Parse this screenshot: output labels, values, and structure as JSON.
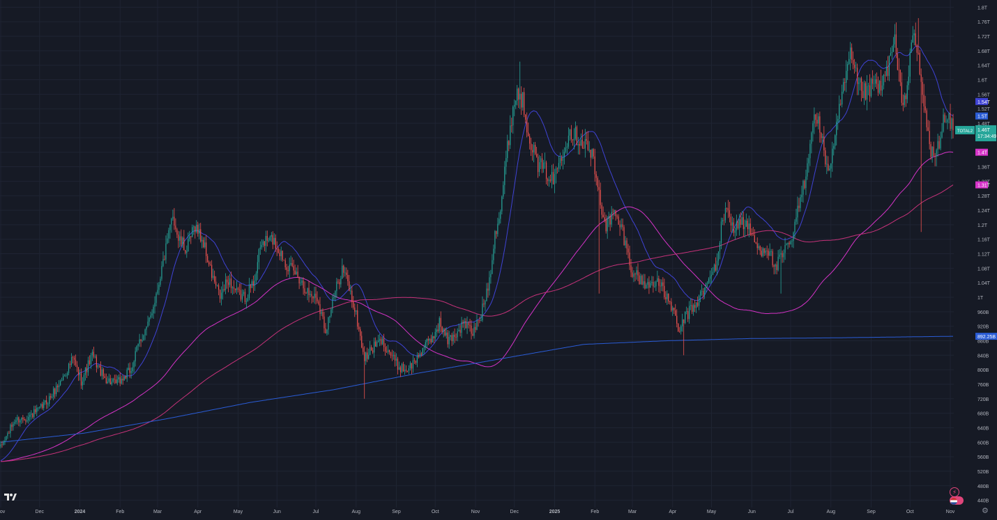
{
  "app": {
    "logo_text": "TV",
    "settings_icon": "gear-icon",
    "lightning_icon": "lightning-icon",
    "flag_icon": "us-flag-icon"
  },
  "colors": {
    "background": "#161a25",
    "grid": "#1f2433",
    "up": "#26a69a",
    "down": "#ef5350",
    "ma_short": "#3f43d6",
    "ma_mid": "#d633c8",
    "ma_long": "#c7327a",
    "ma_slow": "#2a5cd6",
    "axis_text": "#b2b5be"
  },
  "chart_data": {
    "type": "candlestick",
    "symbol_label": "TOTAL2",
    "y_scale": "linear",
    "ylim": [
      420,
      1820
    ],
    "y_unit": "billions USD",
    "y_ticks": [
      {
        "v": 440,
        "label": "440B"
      },
      {
        "v": 480,
        "label": "480B"
      },
      {
        "v": 520,
        "label": "520B"
      },
      {
        "v": 560,
        "label": "560B"
      },
      {
        "v": 600,
        "label": "600B"
      },
      {
        "v": 640,
        "label": "640B"
      },
      {
        "v": 680,
        "label": "680B"
      },
      {
        "v": 720,
        "label": "720B"
      },
      {
        "v": 760,
        "label": "760B"
      },
      {
        "v": 800,
        "label": "800B"
      },
      {
        "v": 840,
        "label": "840B"
      },
      {
        "v": 880,
        "label": "880B"
      },
      {
        "v": 920,
        "label": "920B"
      },
      {
        "v": 960,
        "label": "960B"
      },
      {
        "v": 1000,
        "label": "1T"
      },
      {
        "v": 1040,
        "label": "1.04T"
      },
      {
        "v": 1080,
        "label": "1.08T"
      },
      {
        "v": 1120,
        "label": "1.12T"
      },
      {
        "v": 1160,
        "label": "1.16T"
      },
      {
        "v": 1200,
        "label": "1.2T"
      },
      {
        "v": 1240,
        "label": "1.24T"
      },
      {
        "v": 1280,
        "label": "1.28T"
      },
      {
        "v": 1320,
        "label": "1.32T"
      },
      {
        "v": 1360,
        "label": "1.36T"
      },
      {
        "v": 1400,
        "label": "1.4T"
      },
      {
        "v": 1440,
        "label": "1.44T"
      },
      {
        "v": 1480,
        "label": "1.48T"
      },
      {
        "v": 1520,
        "label": "1.52T"
      },
      {
        "v": 1560,
        "label": "1.56T"
      },
      {
        "v": 1600,
        "label": "1.6T"
      },
      {
        "v": 1640,
        "label": "1.64T"
      },
      {
        "v": 1680,
        "label": "1.68T"
      },
      {
        "v": 1720,
        "label": "1.72T"
      },
      {
        "v": 1760,
        "label": "1.76T"
      },
      {
        "v": 1800,
        "label": "1.8T"
      }
    ],
    "x_ticks": [
      {
        "i": 0,
        "label": "Nov",
        "bold": false
      },
      {
        "i": 28,
        "label": "Dec",
        "bold": false
      },
      {
        "i": 57,
        "label": "2024",
        "bold": true
      },
      {
        "i": 86,
        "label": "Feb",
        "bold": false
      },
      {
        "i": 113,
        "label": "Mar",
        "bold": false
      },
      {
        "i": 142,
        "label": "Apr",
        "bold": false
      },
      {
        "i": 171,
        "label": "May",
        "bold": false
      },
      {
        "i": 199,
        "label": "Jun",
        "bold": false
      },
      {
        "i": 227,
        "label": "Jul",
        "bold": false
      },
      {
        "i": 256,
        "label": "Aug",
        "bold": false
      },
      {
        "i": 285,
        "label": "Sep",
        "bold": false
      },
      {
        "i": 313,
        "label": "Oct",
        "bold": false
      },
      {
        "i": 342,
        "label": "Nov",
        "bold": false
      },
      {
        "i": 370,
        "label": "Dec",
        "bold": false
      },
      {
        "i": 399,
        "label": "2025",
        "bold": true
      },
      {
        "i": 428,
        "label": "Feb",
        "bold": false
      },
      {
        "i": 455,
        "label": "Mar",
        "bold": false
      },
      {
        "i": 484,
        "label": "Apr",
        "bold": false
      },
      {
        "i": 512,
        "label": "May",
        "bold": false
      },
      {
        "i": 541,
        "label": "Jun",
        "bold": false
      },
      {
        "i": 569,
        "label": "Jul",
        "bold": false
      },
      {
        "i": 598,
        "label": "Aug",
        "bold": false
      },
      {
        "i": 627,
        "label": "Sep",
        "bold": false
      },
      {
        "i": 655,
        "label": "Oct",
        "bold": false
      },
      {
        "i": 684,
        "label": "Nov",
        "bold": false
      }
    ],
    "price_anchors": [
      [
        0,
        585
      ],
      [
        10,
        660
      ],
      [
        20,
        670
      ],
      [
        28,
        690
      ],
      [
        36,
        725
      ],
      [
        45,
        780
      ],
      [
        52,
        830
      ],
      [
        58,
        770
      ],
      [
        66,
        840
      ],
      [
        74,
        780
      ],
      [
        82,
        760
      ],
      [
        88,
        775
      ],
      [
        94,
        800
      ],
      [
        100,
        880
      ],
      [
        106,
        920
      ],
      [
        112,
        1010
      ],
      [
        116,
        1080
      ],
      [
        120,
        1150
      ],
      [
        124,
        1230
      ],
      [
        128,
        1160
      ],
      [
        134,
        1130
      ],
      [
        140,
        1200
      ],
      [
        146,
        1150
      ],
      [
        152,
        1060
      ],
      [
        158,
        1000
      ],
      [
        164,
        1050
      ],
      [
        170,
        1010
      ],
      [
        176,
        1000
      ],
      [
        182,
        1040
      ],
      [
        188,
        1150
      ],
      [
        196,
        1160
      ],
      [
        202,
        1120
      ],
      [
        208,
        1080
      ],
      [
        214,
        1060
      ],
      [
        222,
        1010
      ],
      [
        228,
        1000
      ],
      [
        234,
        910
      ],
      [
        240,
        1000
      ],
      [
        246,
        1080
      ],
      [
        250,
        1040
      ],
      [
        256,
        950
      ],
      [
        262,
        830
      ],
      [
        268,
        860
      ],
      [
        274,
        880
      ],
      [
        280,
        850
      ],
      [
        286,
        810
      ],
      [
        292,
        800
      ],
      [
        298,
        820
      ],
      [
        304,
        860
      ],
      [
        310,
        880
      ],
      [
        316,
        930
      ],
      [
        322,
        880
      ],
      [
        328,
        900
      ],
      [
        334,
        930
      ],
      [
        340,
        900
      ],
      [
        346,
        950
      ],
      [
        352,
        1050
      ],
      [
        356,
        1180
      ],
      [
        360,
        1240
      ],
      [
        364,
        1380
      ],
      [
        368,
        1500
      ],
      [
        372,
        1570
      ],
      [
        376,
        1540
      ],
      [
        380,
        1460
      ],
      [
        386,
        1370
      ],
      [
        392,
        1350
      ],
      [
        398,
        1320
      ],
      [
        404,
        1400
      ],
      [
        410,
        1460
      ],
      [
        416,
        1440
      ],
      [
        422,
        1420
      ],
      [
        426,
        1390
      ],
      [
        432,
        1260
      ],
      [
        436,
        1200
      ],
      [
        442,
        1230
      ],
      [
        448,
        1180
      ],
      [
        454,
        1080
      ],
      [
        460,
        1050
      ],
      [
        466,
        1030
      ],
      [
        472,
        1050
      ],
      [
        478,
        1010
      ],
      [
        484,
        970
      ],
      [
        488,
        900
      ],
      [
        492,
        940
      ],
      [
        496,
        960
      ],
      [
        502,
        990
      ],
      [
        508,
        1030
      ],
      [
        512,
        1060
      ],
      [
        516,
        1100
      ],
      [
        520,
        1220
      ],
      [
        524,
        1240
      ],
      [
        528,
        1190
      ],
      [
        534,
        1210
      ],
      [
        540,
        1180
      ],
      [
        546,
        1130
      ],
      [
        552,
        1140
      ],
      [
        558,
        1080
      ],
      [
        564,
        1120
      ],
      [
        570,
        1160
      ],
      [
        576,
        1270
      ],
      [
        580,
        1340
      ],
      [
        584,
        1470
      ],
      [
        588,
        1500
      ],
      [
        592,
        1420
      ],
      [
        596,
        1350
      ],
      [
        600,
        1410
      ],
      [
        606,
        1560
      ],
      [
        612,
        1660
      ],
      [
        618,
        1580
      ],
      [
        624,
        1560
      ],
      [
        630,
        1590
      ],
      [
        634,
        1570
      ],
      [
        640,
        1650
      ],
      [
        644,
        1700
      ],
      [
        648,
        1570
      ],
      [
        652,
        1540
      ],
      [
        656,
        1720
      ],
      [
        660,
        1680
      ],
      [
        664,
        1560
      ],
      [
        666,
        1500
      ],
      [
        670,
        1400
      ],
      [
        674,
        1390
      ],
      [
        678,
        1480
      ],
      [
        682,
        1490
      ],
      [
        686,
        1461
      ]
    ],
    "wick_spikes": [
      {
        "i": 262,
        "low": 720
      },
      {
        "i": 431,
        "low": 1010
      },
      {
        "i": 492,
        "low": 840
      },
      {
        "i": 562,
        "low": 1010
      },
      {
        "i": 663,
        "low": 1180
      },
      {
        "i": 374,
        "high": 1650
      },
      {
        "i": 661,
        "high": 1770
      }
    ],
    "moving_averages": [
      {
        "key": "ma_short",
        "period": 20,
        "last": 1500,
        "label": "1.5T"
      },
      {
        "key": "ma_mid",
        "period": 100,
        "last": 1400,
        "label": "1.4T"
      },
      {
        "key": "ma_long",
        "period": 200,
        "last": 1310,
        "label": "1.31T"
      },
      {
        "key": "ma_slow",
        "period": 730,
        "last": 892.25,
        "label": "892.25B"
      }
    ],
    "ma_slow_anchors": [
      [
        0,
        600
      ],
      [
        60,
        625
      ],
      [
        120,
        665
      ],
      [
        180,
        710
      ],
      [
        240,
        745
      ],
      [
        300,
        790
      ],
      [
        360,
        830
      ],
      [
        420,
        870
      ],
      [
        480,
        880
      ],
      [
        540,
        886
      ],
      [
        600,
        888
      ],
      [
        686,
        892.25
      ]
    ],
    "price_labels": [
      {
        "value": 1540,
        "label": "1.54T",
        "color": "#3f43d6"
      },
      {
        "value": 1500,
        "label": "1.5T",
        "color": "#2a5cd6"
      },
      {
        "value": 1461,
        "label": "1.46T",
        "extra": "17:34:49",
        "tag": "TOTAL2",
        "color": "#26a69a"
      },
      {
        "value": 1400,
        "label": "1.4T",
        "color": "#d633c8"
      },
      {
        "value": 1310,
        "label": "1.31T",
        "color": "#d633c8"
      },
      {
        "value": 892.25,
        "label": "892.25B",
        "color": "#2a5cd6"
      }
    ],
    "grid": true
  }
}
